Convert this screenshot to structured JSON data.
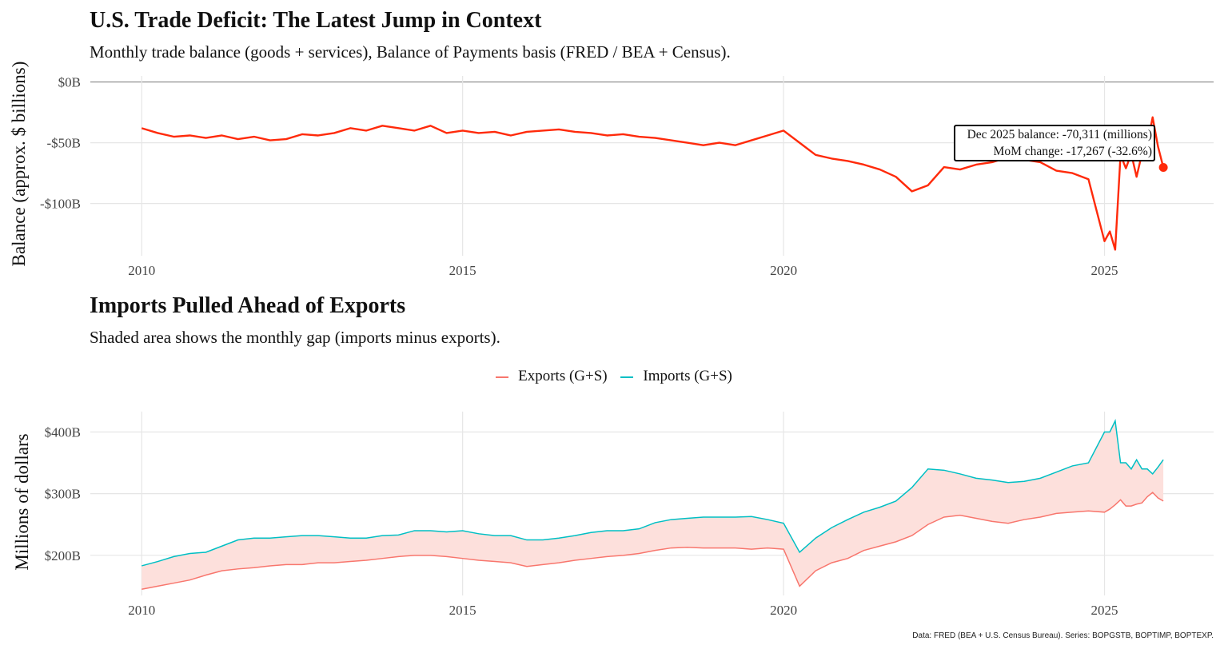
{
  "chart_data": [
    {
      "type": "line",
      "title": "U.S. Trade Deficit: The Latest Jump in Context",
      "subtitle": "Monthly trade balance (goods + services), Balance of Payments basis (FRED / BEA + Census).",
      "xlabel": "",
      "ylabel": "Balance (approx. $ billions)",
      "xlim": [
        2009.2,
        2026.7
      ],
      "ylim": [
        -143,
        5
      ],
      "x_ticks": [
        "2010",
        "2015",
        "2020",
        "2025"
      ],
      "y_ticks": [
        {
          "value": 0,
          "label": "$0B"
        },
        {
          "value": -50,
          "label": "-$50B"
        },
        {
          "value": -100,
          "label": "-$100B"
        }
      ],
      "grid": true,
      "color": "#FF2A0A",
      "x": [
        "2010-01",
        "2010-04",
        "2010-07",
        "2010-10",
        "2011-01",
        "2011-04",
        "2011-07",
        "2011-10",
        "2012-01",
        "2012-04",
        "2012-07",
        "2012-10",
        "2013-01",
        "2013-04",
        "2013-07",
        "2013-10",
        "2014-01",
        "2014-04",
        "2014-07",
        "2014-10",
        "2015-01",
        "2015-04",
        "2015-07",
        "2015-10",
        "2016-01",
        "2016-04",
        "2016-07",
        "2016-10",
        "2017-01",
        "2017-04",
        "2017-07",
        "2017-10",
        "2018-01",
        "2018-04",
        "2018-07",
        "2018-10",
        "2019-01",
        "2019-04",
        "2019-07",
        "2019-10",
        "2020-01",
        "2020-04",
        "2020-07",
        "2020-10",
        "2021-01",
        "2021-04",
        "2021-07",
        "2021-10",
        "2022-01",
        "2022-04",
        "2022-07",
        "2022-10",
        "2023-01",
        "2023-04",
        "2023-07",
        "2023-10",
        "2024-01",
        "2024-04",
        "2024-07",
        "2024-10",
        "2025-01",
        "2025-02",
        "2025-03",
        "2025-04",
        "2025-05",
        "2025-06",
        "2025-07",
        "2025-08",
        "2025-09",
        "2025-10",
        "2025-11",
        "2025-12"
      ],
      "values": [
        -38,
        -42,
        -45,
        -44,
        -46,
        -44,
        -47,
        -45,
        -48,
        -47,
        -43,
        -44,
        -42,
        -38,
        -40,
        -36,
        -38,
        -40,
        -36,
        -42,
        -40,
        -42,
        -41,
        -44,
        -41,
        -40,
        -39,
        -41,
        -42,
        -44,
        -43,
        -45,
        -46,
        -48,
        -50,
        -52,
        -50,
        -52,
        -48,
        -44,
        -40,
        -50,
        -60,
        -63,
        -65,
        -68,
        -72,
        -78,
        -90,
        -85,
        -70,
        -72,
        -68,
        -66,
        -62,
        -64,
        -66,
        -73,
        -75,
        -80,
        -131,
        -123,
        -138,
        -60,
        -71,
        -59,
        -78,
        -59,
        -52,
        -29,
        -53,
        -70.3
      ],
      "annotation": {
        "line1": "Dec 2025 balance: -70,311 (millions)",
        "line2": "MoM change: -17,267 (-32.6%)"
      }
    },
    {
      "type": "area",
      "title": "Imports Pulled Ahead of Exports",
      "subtitle": "Shaded area shows the monthly gap (imports minus exports).",
      "xlabel": "",
      "ylabel": "Millions of dollars",
      "xlim": [
        2009.2,
        2026.7
      ],
      "ylim": [
        135,
        433
      ],
      "x_ticks": [
        "2010",
        "2015",
        "2020",
        "2025"
      ],
      "y_ticks": [
        {
          "value": 200,
          "label": "$200B"
        },
        {
          "value": 300,
          "label": "$300B"
        },
        {
          "value": 400,
          "label": "$400B"
        }
      ],
      "grid": true,
      "legend_position": "top",
      "fill_color": "#FDE0DC",
      "x": [
        "2010-01",
        "2010-04",
        "2010-07",
        "2010-10",
        "2011-01",
        "2011-04",
        "2011-07",
        "2011-10",
        "2012-01",
        "2012-04",
        "2012-07",
        "2012-10",
        "2013-01",
        "2013-04",
        "2013-07",
        "2013-10",
        "2014-01",
        "2014-04",
        "2014-07",
        "2014-10",
        "2015-01",
        "2015-04",
        "2015-07",
        "2015-10",
        "2016-01",
        "2016-04",
        "2016-07",
        "2016-10",
        "2017-01",
        "2017-04",
        "2017-07",
        "2017-10",
        "2018-01",
        "2018-04",
        "2018-07",
        "2018-10",
        "2019-01",
        "2019-04",
        "2019-07",
        "2019-10",
        "2020-01",
        "2020-04",
        "2020-07",
        "2020-10",
        "2021-01",
        "2021-04",
        "2021-07",
        "2021-10",
        "2022-01",
        "2022-04",
        "2022-07",
        "2022-10",
        "2023-01",
        "2023-04",
        "2023-07",
        "2023-10",
        "2024-01",
        "2024-04",
        "2024-07",
        "2024-10",
        "2025-01",
        "2025-02",
        "2025-03",
        "2025-04",
        "2025-05",
        "2025-06",
        "2025-07",
        "2025-08",
        "2025-09",
        "2025-10",
        "2025-11",
        "2025-12"
      ],
      "series": [
        {
          "name": "Exports (G+S)",
          "color": "#F8766D",
          "values": [
            145,
            150,
            155,
            160,
            168,
            175,
            178,
            180,
            183,
            185,
            185,
            188,
            188,
            190,
            192,
            195,
            198,
            200,
            200,
            198,
            195,
            192,
            190,
            188,
            182,
            185,
            188,
            192,
            195,
            198,
            200,
            203,
            208,
            212,
            213,
            212,
            212,
            212,
            210,
            212,
            210,
            150,
            175,
            188,
            195,
            208,
            215,
            222,
            232,
            250,
            262,
            265,
            260,
            255,
            252,
            258,
            262,
            268,
            270,
            272,
            270,
            275,
            282,
            290,
            280,
            280,
            283,
            285,
            295,
            302,
            293,
            288
          ]
        },
        {
          "name": "Imports (G+S)",
          "color": "#00BFC4",
          "values": [
            183,
            190,
            198,
            203,
            205,
            215,
            225,
            228,
            228,
            230,
            232,
            232,
            230,
            228,
            228,
            232,
            233,
            240,
            240,
            238,
            240,
            235,
            232,
            232,
            225,
            225,
            228,
            232,
            237,
            240,
            240,
            243,
            253,
            258,
            260,
            262,
            262,
            262,
            263,
            258,
            252,
            205,
            228,
            245,
            258,
            270,
            278,
            288,
            310,
            340,
            338,
            332,
            325,
            322,
            318,
            320,
            325,
            335,
            345,
            350,
            400,
            400,
            418,
            350,
            350,
            340,
            355,
            340,
            340,
            332,
            343,
            355
          ]
        }
      ]
    }
  ],
  "caption": "Data: FRED (BEA + U.S. Census Bureau). Series: BOPGSTB, BOPTIMP, BOPTEXP."
}
